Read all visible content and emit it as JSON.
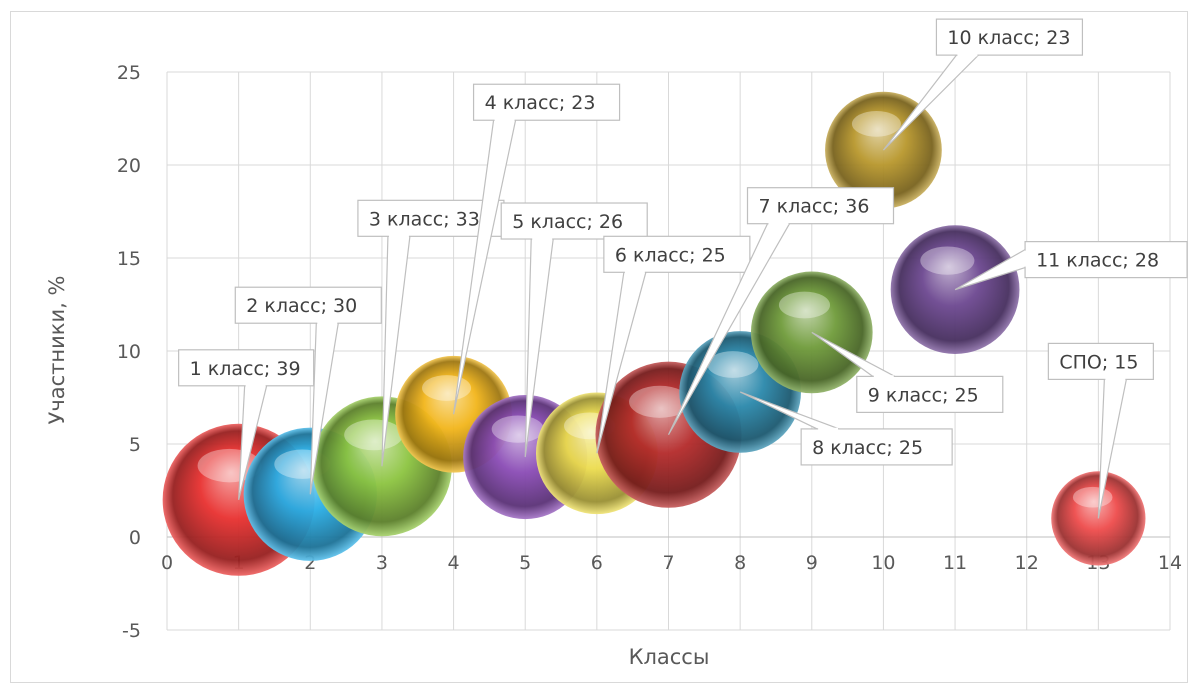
{
  "chart_data": {
    "type": "bubble",
    "title": "",
    "xlabel": "Классы",
    "ylabel": "Участники, %",
    "xlim": [
      0,
      14
    ],
    "ylim": [
      -5,
      25
    ],
    "x_ticks": [
      0,
      1,
      2,
      3,
      4,
      5,
      6,
      7,
      8,
      9,
      10,
      11,
      12,
      13,
      14
    ],
    "y_ticks": [
      -5,
      0,
      5,
      10,
      15,
      20,
      25
    ],
    "grid": true,
    "points": [
      {
        "x": 1,
        "y": 2,
        "size": 39,
        "label": "1 класс; 39",
        "color": "#e8302f"
      },
      {
        "x": 2,
        "y": 2.3,
        "size": 30,
        "label": "2 класс; 30",
        "color": "#29aee6"
      },
      {
        "x": 3,
        "y": 3.8,
        "size": 33,
        "label": "3 класс; 33",
        "color": "#8cc440"
      },
      {
        "x": 4,
        "y": 6.6,
        "size": 23,
        "label": "4 класс; 23",
        "color": "#f2b51a"
      },
      {
        "x": 5,
        "y": 4.3,
        "size": 26,
        "label": "5 класс; 26",
        "color": "#8a4bb5"
      },
      {
        "x": 6,
        "y": 4.5,
        "size": 25,
        "label": "6 класс; 25",
        "color": "#ecdc4e"
      },
      {
        "x": 7,
        "y": 5.5,
        "size": 36,
        "label": "7 класс; 36",
        "color": "#b42a2a"
      },
      {
        "x": 8,
        "y": 7.8,
        "size": 25,
        "label": "8 класс; 25",
        "color": "#2a88ab"
      },
      {
        "x": 9,
        "y": 11.0,
        "size": 25,
        "label": "9 класс; 25",
        "color": "#6f9b3a"
      },
      {
        "x": 10,
        "y": 20.8,
        "size": 23,
        "label": "10 класс; 23",
        "color": "#b8972c"
      },
      {
        "x": 11,
        "y": 13.3,
        "size": 28,
        "label": "11 класс; 28",
        "color": "#6c4790"
      },
      {
        "x": 13,
        "y": 1.0,
        "size": 15,
        "label": "СПО; 15",
        "color": "#ee4b4b"
      }
    ]
  }
}
